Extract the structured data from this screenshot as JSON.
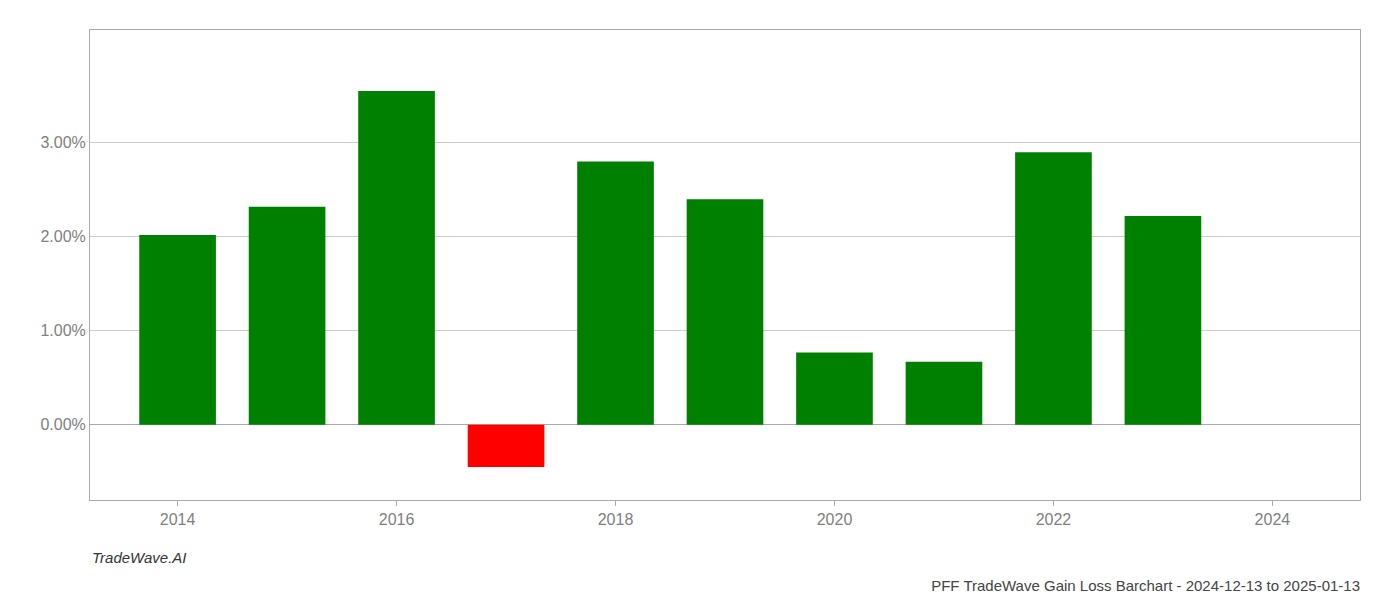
{
  "chart_data": {
    "type": "bar",
    "title": "PFF TradeWave Gain Loss Barchart - 2024-12-13 to 2025-01-13",
    "annotations": [
      "TradeWave.AI"
    ],
    "x": [
      2014,
      2015,
      2016,
      2017,
      2018,
      2019,
      2020,
      2021,
      2022,
      2023
    ],
    "values": [
      0.0202,
      0.0232,
      0.0355,
      -0.0045,
      0.028,
      0.024,
      0.0077,
      0.0067,
      0.029,
      0.0222
    ],
    "colors": [
      "#008000",
      "#008000",
      "#008000",
      "#ff0000",
      "#008000",
      "#008000",
      "#008000",
      "#008000",
      "#008000",
      "#008000"
    ],
    "xlim": [
      2013.2,
      2024.8
    ],
    "xticks": [
      2014,
      2016,
      2018,
      2020,
      2022,
      2024
    ],
    "ylim": [
      -0.008,
      0.042
    ],
    "yticks": [
      {
        "value": 0.0,
        "label": "0.00%"
      },
      {
        "value": 0.01,
        "label": "1.00%"
      },
      {
        "value": 0.02,
        "label": "2.00%"
      },
      {
        "value": 0.03,
        "label": "3.00%"
      }
    ],
    "grid": true
  }
}
